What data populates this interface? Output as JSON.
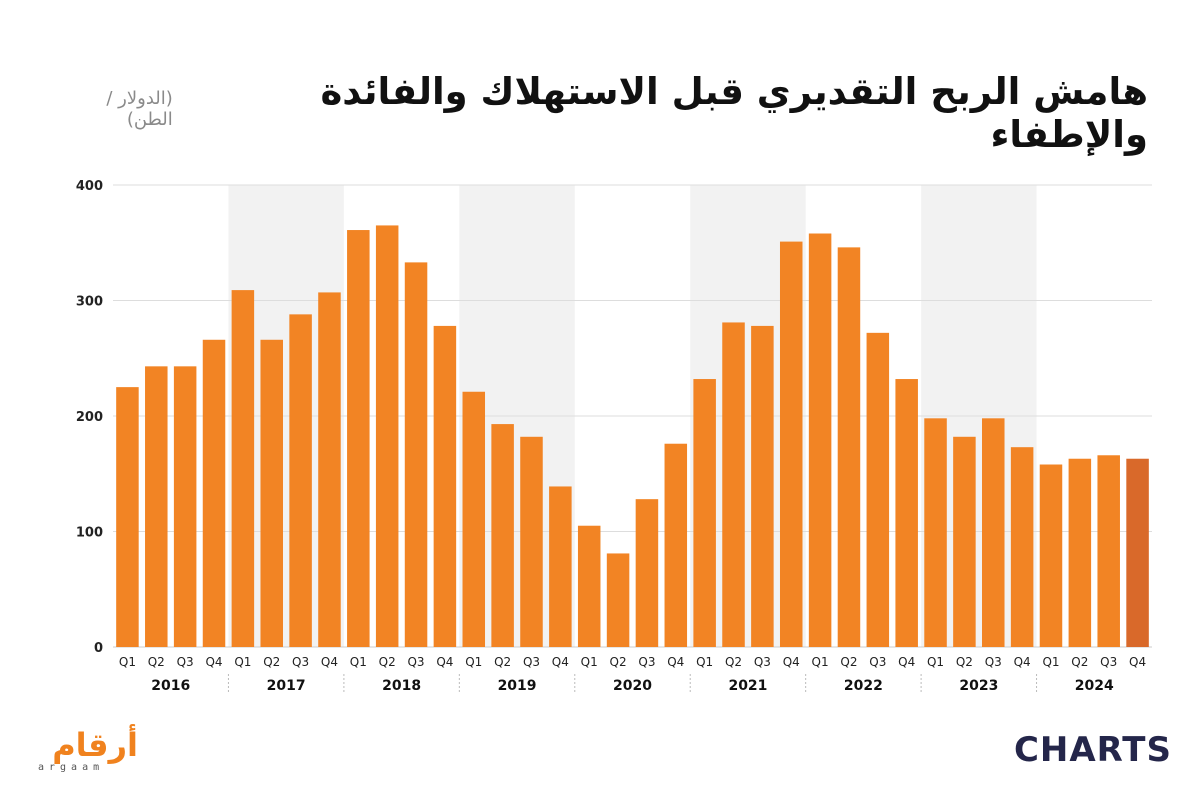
{
  "title": "هامش الربح التقديري قبل الاستهلاك والفائدة والإطفاء",
  "subtitle": "(الدولار / الطن)",
  "logos": {
    "left_text": "أرقام",
    "left_sub": "argaam",
    "right_text": "CHARTS"
  },
  "colors": {
    "bar": "#f28424",
    "bar_last": "#d9692a",
    "band": "#f2f2f2",
    "grid": "#dddddd"
  },
  "chart_data": {
    "type": "bar",
    "title": "هامش الربح التقديري قبل الاستهلاك والفائدة والإطفاء",
    "subtitle": "(الدولار / الطن)",
    "ylim": [
      0,
      400
    ],
    "yticks": [
      0,
      100,
      200,
      300,
      400
    ],
    "grid": true,
    "quarters": [
      "Q1",
      "Q2",
      "Q3",
      "Q4"
    ],
    "years": [
      "2016",
      "2017",
      "2018",
      "2019",
      "2020",
      "2021",
      "2022",
      "2023",
      "2024"
    ],
    "shaded_years": [
      "2017",
      "2019",
      "2021",
      "2023"
    ],
    "highlight_last": true,
    "values": [
      225,
      243,
      243,
      266,
      309,
      266,
      288,
      307,
      361,
      365,
      333,
      278,
      221,
      193,
      182,
      139,
      105,
      81,
      128,
      176,
      232,
      281,
      278,
      351,
      358,
      346,
      272,
      232,
      198,
      182,
      198,
      173,
      158,
      163,
      166,
      163
    ]
  }
}
